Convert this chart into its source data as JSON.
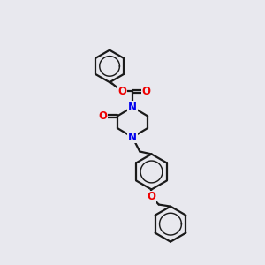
{
  "background_color": "#e8e8ee",
  "bond_color": "#1a1a1a",
  "nitrogen_color": "#0000ee",
  "oxygen_color": "#ee0000",
  "bond_width": 1.6,
  "fig_width": 3.0,
  "fig_height": 3.0,
  "dpi": 100,
  "xlim": [
    0,
    10
  ],
  "ylim": [
    0,
    10
  ]
}
